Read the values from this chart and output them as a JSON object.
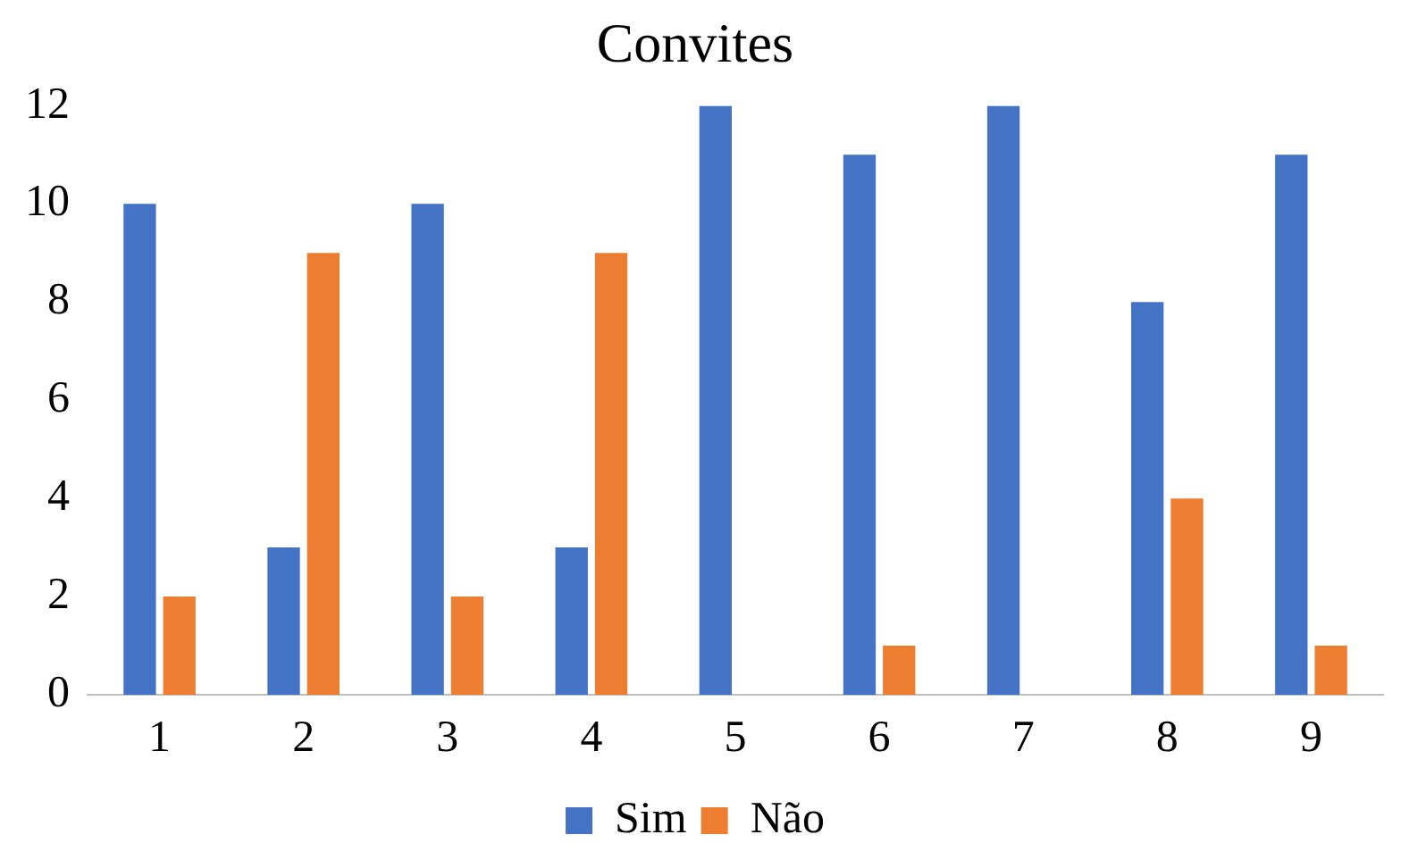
{
  "chart_data": {
    "type": "bar",
    "title": "Convites",
    "categories": [
      "1",
      "2",
      "3",
      "4",
      "5",
      "6",
      "7",
      "8",
      "9"
    ],
    "series": [
      {
        "name": "Sim",
        "color": "#4472c4",
        "values": [
          10,
          3,
          10,
          3,
          12,
          11,
          12,
          8,
          11
        ]
      },
      {
        "name": "Não",
        "color": "#ed7d31",
        "values": [
          2,
          9,
          2,
          9,
          0,
          1,
          0,
          4,
          1
        ]
      }
    ],
    "ylim": [
      0,
      12
    ],
    "yticks": [
      0,
      2,
      4,
      6,
      8,
      10,
      12
    ],
    "grid": false,
    "legend": "bottom"
  }
}
